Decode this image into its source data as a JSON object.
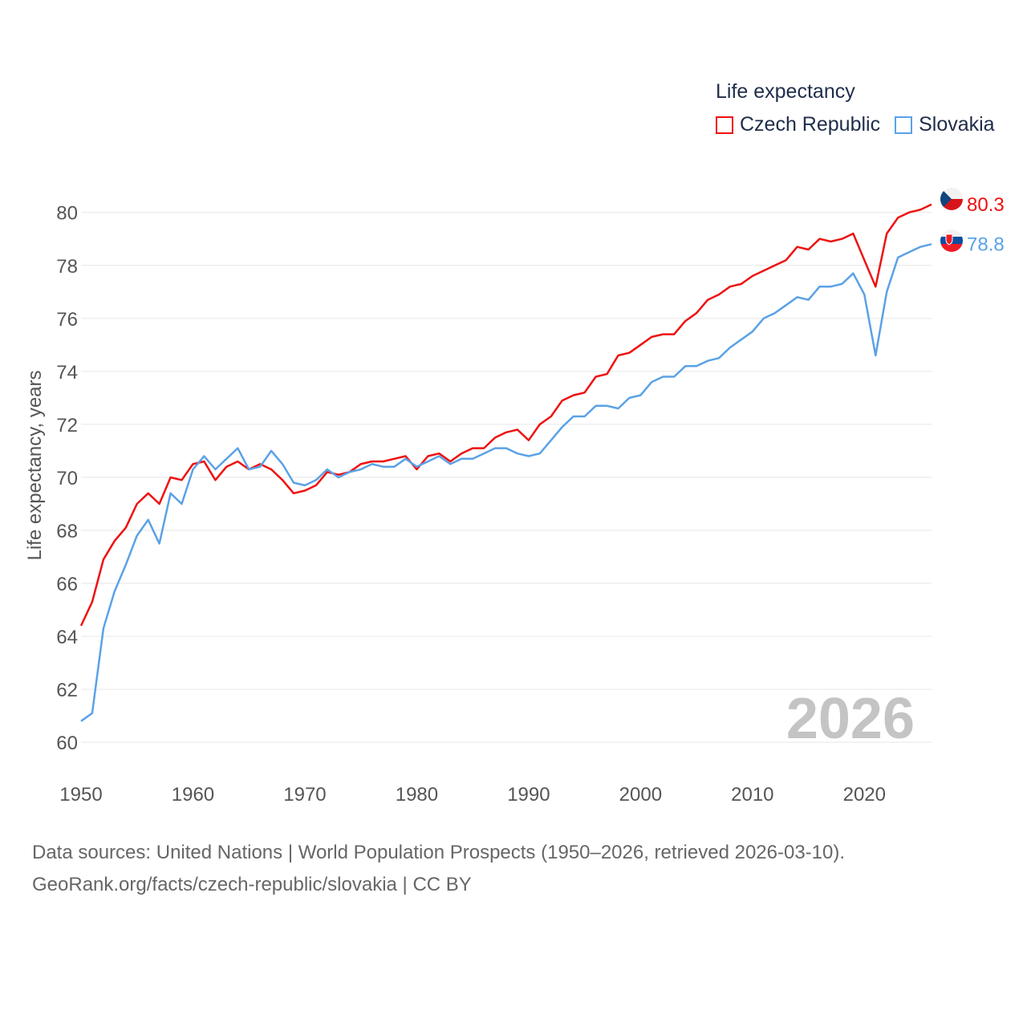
{
  "legend": {
    "title": "Life expectancy",
    "items": [
      {
        "label": "Czech Republic",
        "color": "#ee1111"
      },
      {
        "label": "Slovakia",
        "color": "#5aa2e6"
      }
    ]
  },
  "source": {
    "line1": "Data sources: United Nations | World Population Prospects (1950–2026, retrieved 2026-03-10).",
    "line2": "GeoRank.org/facts/czech-republic/slovakia | CC BY"
  },
  "chart_data": {
    "type": "line",
    "title": "Life expectancy",
    "xlabel": "",
    "ylabel": "Life expectancy, years",
    "watermark": "2026",
    "xlim": [
      1950,
      2026
    ],
    "ylim": [
      59.4,
      80.9
    ],
    "grid": true,
    "legend_position": "top-right",
    "xticks": [
      1950,
      1960,
      1970,
      1980,
      1990,
      2000,
      2010,
      2020
    ],
    "yticks": [
      60,
      62,
      64,
      66,
      68,
      70,
      72,
      74,
      76,
      78,
      80
    ],
    "x": [
      1950,
      1951,
      1952,
      1953,
      1954,
      1955,
      1956,
      1957,
      1958,
      1959,
      1960,
      1961,
      1962,
      1963,
      1964,
      1965,
      1966,
      1967,
      1968,
      1969,
      1970,
      1971,
      1972,
      1973,
      1974,
      1975,
      1976,
      1977,
      1978,
      1979,
      1980,
      1981,
      1982,
      1983,
      1984,
      1985,
      1986,
      1987,
      1988,
      1989,
      1990,
      1991,
      1992,
      1993,
      1994,
      1995,
      1996,
      1997,
      1998,
      1999,
      2000,
      2001,
      2002,
      2003,
      2004,
      2005,
      2006,
      2007,
      2008,
      2009,
      2010,
      2011,
      2012,
      2013,
      2014,
      2015,
      2016,
      2017,
      2018,
      2019,
      2020,
      2021,
      2022,
      2023,
      2024,
      2025,
      2026
    ],
    "series": [
      {
        "name": "Czech Republic",
        "color": "#ee1111",
        "end_label": "80.3",
        "values": [
          64.4,
          65.3,
          66.9,
          67.6,
          68.1,
          69.0,
          69.4,
          69.0,
          70.0,
          69.9,
          70.5,
          70.6,
          69.9,
          70.4,
          70.6,
          70.3,
          70.5,
          70.3,
          69.9,
          69.4,
          69.5,
          69.7,
          70.2,
          70.1,
          70.2,
          70.5,
          70.6,
          70.6,
          70.7,
          70.8,
          70.3,
          70.8,
          70.9,
          70.6,
          70.9,
          71.1,
          71.1,
          71.5,
          71.7,
          71.8,
          71.4,
          72.0,
          72.3,
          72.9,
          73.1,
          73.2,
          73.8,
          73.9,
          74.6,
          74.7,
          75.0,
          75.3,
          75.4,
          75.4,
          75.9,
          76.2,
          76.7,
          76.9,
          77.2,
          77.3,
          77.6,
          77.8,
          78.0,
          78.2,
          78.7,
          78.6,
          79.0,
          78.9,
          79.0,
          79.2,
          78.2,
          77.2,
          79.2,
          79.8,
          80.0,
          80.1,
          80.3
        ]
      },
      {
        "name": "Slovakia",
        "color": "#5aa2e6",
        "end_label": "78.8",
        "values": [
          60.8,
          61.1,
          64.3,
          65.7,
          66.7,
          67.8,
          68.4,
          67.5,
          69.4,
          69.0,
          70.3,
          70.8,
          70.3,
          70.7,
          71.1,
          70.3,
          70.4,
          71.0,
          70.5,
          69.8,
          69.7,
          69.9,
          70.3,
          70.0,
          70.2,
          70.3,
          70.5,
          70.4,
          70.4,
          70.7,
          70.4,
          70.6,
          70.8,
          70.5,
          70.7,
          70.7,
          70.9,
          71.1,
          71.1,
          70.9,
          70.8,
          70.9,
          71.4,
          71.9,
          72.3,
          72.3,
          72.7,
          72.7,
          72.6,
          73.0,
          73.1,
          73.6,
          73.8,
          73.8,
          74.2,
          74.2,
          74.4,
          74.5,
          74.9,
          75.2,
          75.5,
          76.0,
          76.2,
          76.5,
          76.8,
          76.7,
          77.2,
          77.2,
          77.3,
          77.7,
          76.9,
          74.6,
          77.0,
          78.3,
          78.5,
          78.7,
          78.8
        ]
      }
    ]
  }
}
